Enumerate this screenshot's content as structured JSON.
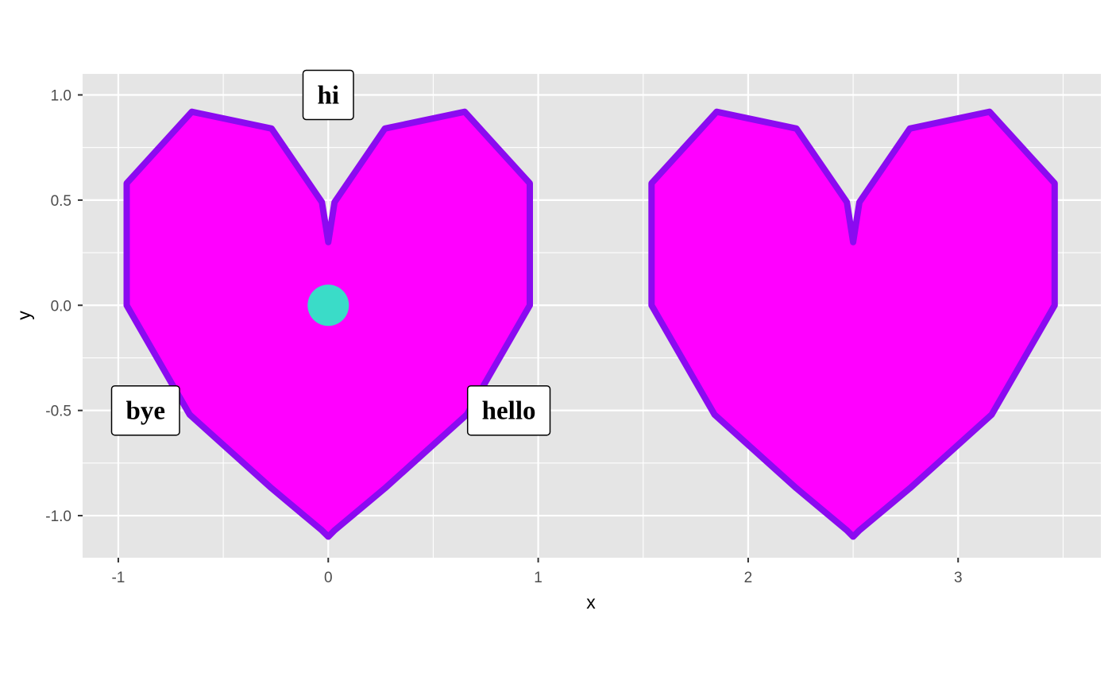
{
  "chart_data": {
    "type": "scatter",
    "xlabel": "x",
    "ylabel": "y",
    "xlim": [
      -1.17,
      3.68
    ],
    "ylim": [
      -1.2,
      1.1
    ],
    "x_ticks": [
      -1,
      0,
      1,
      2,
      3
    ],
    "x_tick_labels": [
      "-1",
      "0",
      "1",
      "2",
      "3"
    ],
    "y_ticks": [
      1.0,
      0.5,
      0.0,
      -0.5,
      -1.0
    ],
    "y_tick_labels": [
      "1.0",
      "0.5",
      "0.0",
      "-0.5",
      "-1.0"
    ],
    "grid": true,
    "colors": {
      "panel_background": "#E5E5E5",
      "grid": "#FFFFFF",
      "heart_fill": "#FF00FF",
      "heart_outline": "#8B0AF0",
      "point": "#3ADCC8"
    },
    "hearts": [
      {
        "center_x": 0.0,
        "polygon": [
          [
            0.0,
            0.3
          ],
          [
            0.03,
            0.49
          ],
          [
            0.27,
            0.84
          ],
          [
            0.65,
            0.92
          ],
          [
            0.96,
            0.58
          ],
          [
            0.96,
            0.0
          ],
          [
            0.66,
            -0.52
          ],
          [
            0.27,
            -0.87
          ],
          [
            0.03,
            -1.07
          ],
          [
            0.0,
            -1.1
          ],
          [
            -0.03,
            -1.07
          ],
          [
            -0.27,
            -0.87
          ],
          [
            -0.66,
            -0.52
          ],
          [
            -0.96,
            0.0
          ],
          [
            -0.96,
            0.58
          ],
          [
            -0.65,
            0.92
          ],
          [
            -0.27,
            0.84
          ],
          [
            -0.03,
            0.49
          ]
        ]
      },
      {
        "center_x": 2.5,
        "polygon": [
          [
            2.5,
            0.3
          ],
          [
            2.53,
            0.49
          ],
          [
            2.77,
            0.84
          ],
          [
            3.15,
            0.92
          ],
          [
            3.46,
            0.58
          ],
          [
            3.46,
            0.0
          ],
          [
            3.16,
            -0.52
          ],
          [
            2.77,
            -0.87
          ],
          [
            2.53,
            -1.07
          ],
          [
            2.5,
            -1.1
          ],
          [
            2.47,
            -1.07
          ],
          [
            2.23,
            -0.87
          ],
          [
            1.84,
            -0.52
          ],
          [
            1.54,
            0.0
          ],
          [
            1.54,
            0.58
          ],
          [
            1.85,
            0.92
          ],
          [
            2.23,
            0.84
          ],
          [
            2.47,
            0.49
          ]
        ]
      }
    ],
    "points": [
      {
        "x": 0.0,
        "y": 0.0
      }
    ],
    "labels": [
      {
        "text": "hi",
        "x": 0.0,
        "y": 1.0
      },
      {
        "text": "bye",
        "x": -0.87,
        "y": -0.5
      },
      {
        "text": "hello",
        "x": 0.86,
        "y": -0.5
      }
    ]
  }
}
